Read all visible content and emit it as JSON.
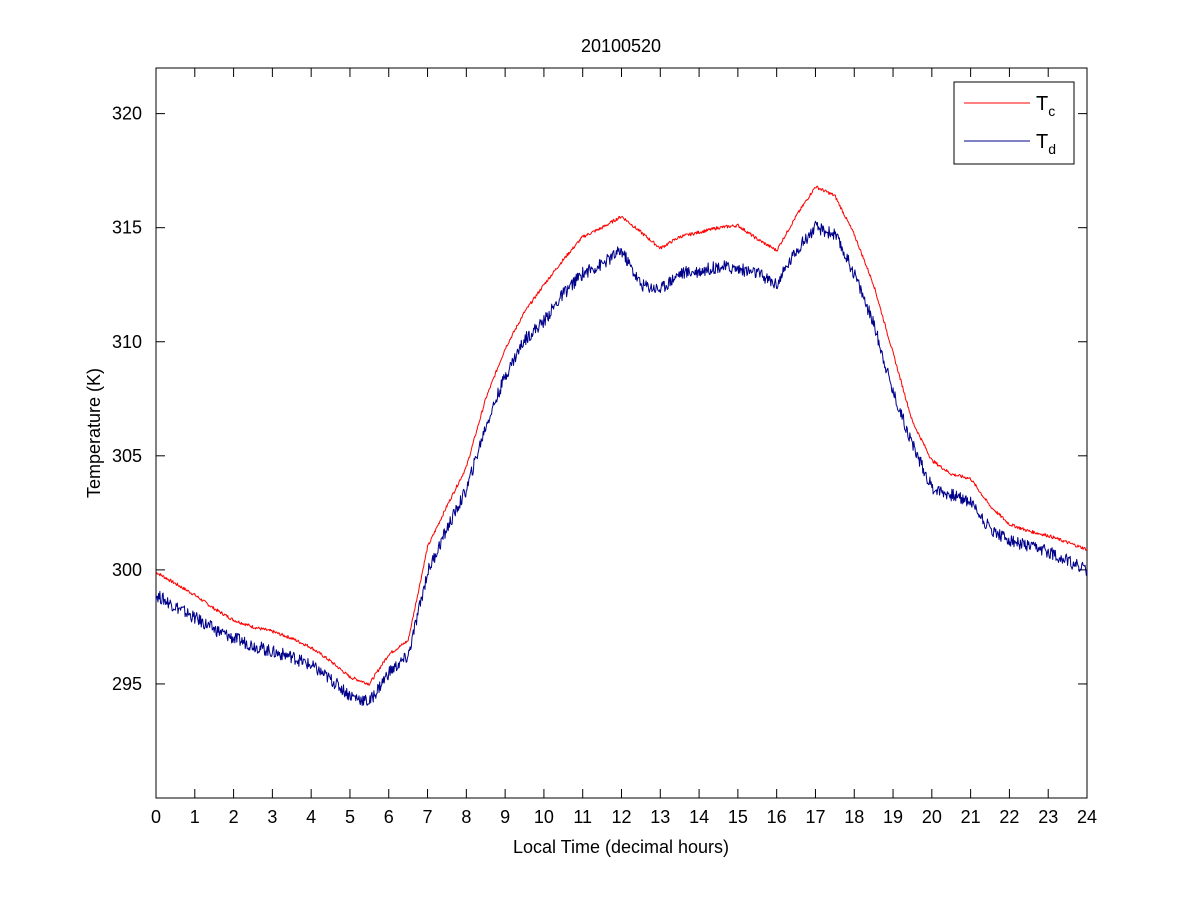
{
  "chart_data": {
    "type": "line",
    "title": "20100520",
    "xlabel": "Local Time (decimal hours)",
    "ylabel": "Temperature (K)",
    "xlim": [
      0,
      24
    ],
    "ylim": [
      290,
      322
    ],
    "xticks": [
      0,
      1,
      2,
      3,
      4,
      5,
      6,
      7,
      8,
      9,
      10,
      11,
      12,
      13,
      14,
      15,
      16,
      17,
      18,
      19,
      20,
      21,
      22,
      23,
      24
    ],
    "yticks": [
      295,
      300,
      305,
      310,
      315,
      320
    ],
    "grid": false,
    "legend_position": "top-right",
    "series": [
      {
        "name": "Tc",
        "color": "#ff0000",
        "x": [
          0,
          0.5,
          1,
          1.5,
          2,
          2.5,
          3,
          3.5,
          4,
          4.5,
          5,
          5.5,
          6,
          6.5,
          7,
          7.5,
          8,
          8.5,
          9,
          9.5,
          10,
          10.5,
          11,
          11.5,
          12,
          12.5,
          13,
          13.5,
          14,
          14.5,
          15,
          15.5,
          16,
          16.5,
          17,
          17.5,
          18,
          18.5,
          19,
          19.5,
          20,
          20.5,
          21,
          21.5,
          22,
          22.5,
          23,
          23.5,
          24
        ],
        "y": [
          299.9,
          299.4,
          298.9,
          298.3,
          297.8,
          297.5,
          297.3,
          297.0,
          296.6,
          296.0,
          295.3,
          295.0,
          296.3,
          296.9,
          301.0,
          302.8,
          304.5,
          307.5,
          309.7,
          311.3,
          312.5,
          313.6,
          314.6,
          315.0,
          315.5,
          314.8,
          314.1,
          314.6,
          314.8,
          315.0,
          315.1,
          314.5,
          314.0,
          315.5,
          316.8,
          316.4,
          314.7,
          312.5,
          309.5,
          306.5,
          304.8,
          304.2,
          304.0,
          302.8,
          302.0,
          301.7,
          301.5,
          301.2,
          300.9
        ]
      },
      {
        "name": "Td",
        "color": "#00008b",
        "x": [
          0,
          0.5,
          1,
          1.5,
          2,
          2.5,
          3,
          3.5,
          4,
          4.5,
          5,
          5.5,
          6,
          6.5,
          7,
          7.5,
          8,
          8.5,
          9,
          9.5,
          10,
          10.5,
          11,
          11.5,
          12,
          12.5,
          13,
          13.5,
          14,
          14.5,
          15,
          15.5,
          16,
          16.5,
          17,
          17.5,
          18,
          18.5,
          19,
          19.5,
          20,
          20.5,
          21,
          21.5,
          22,
          22.5,
          23,
          23.5,
          24
        ],
        "y": [
          298.9,
          298.4,
          297.9,
          297.4,
          297.0,
          296.7,
          296.4,
          296.2,
          295.8,
          295.2,
          294.5,
          294.2,
          295.5,
          296.2,
          299.9,
          301.8,
          303.5,
          306.3,
          308.5,
          310.1,
          310.9,
          312.1,
          313.0,
          313.4,
          314.0,
          312.5,
          312.3,
          313.0,
          313.1,
          313.3,
          313.2,
          313.0,
          312.5,
          314.0,
          315.0,
          314.7,
          313.0,
          310.8,
          307.8,
          305.5,
          303.6,
          303.3,
          303.0,
          301.8,
          301.3,
          301.0,
          300.8,
          300.4,
          300.0
        ]
      }
    ]
  },
  "legend": {
    "items": [
      {
        "main": "T",
        "sub": "c",
        "color": "#ff0000"
      },
      {
        "main": "T",
        "sub": "d",
        "color": "#00008b"
      }
    ]
  }
}
